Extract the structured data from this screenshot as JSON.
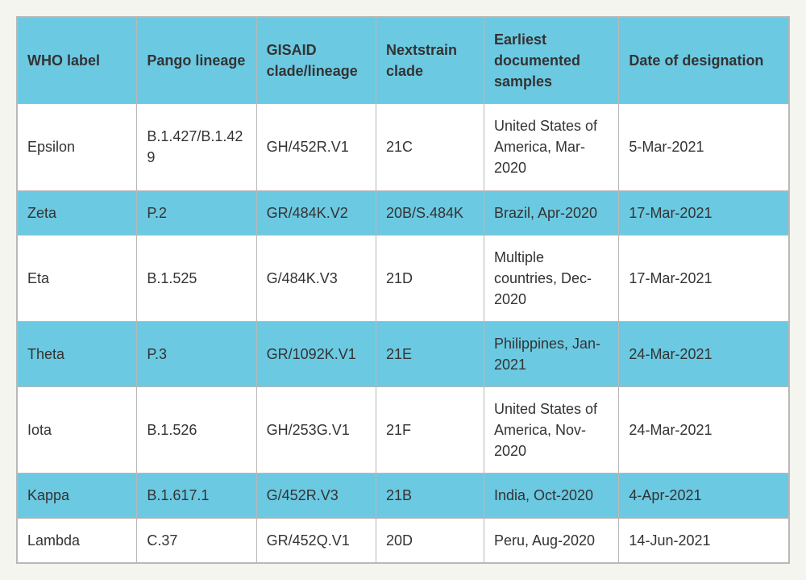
{
  "table": {
    "type": "table",
    "colors": {
      "header_bg": "#6cc9e2",
      "alt_row_bg": "#6cc9e2",
      "row_bg": "#ffffff",
      "border": "#b8b8b8",
      "text": "#333333",
      "page_bg": "#f5f5f0"
    },
    "typography": {
      "header_fontsize": 18,
      "cell_fontsize": 18,
      "header_weight": "bold",
      "cell_weight": "normal"
    },
    "columns": [
      {
        "key": "who_label",
        "label": "WHO label",
        "width_pct": 15.5
      },
      {
        "key": "pango_lineage",
        "label": "Pango lineage",
        "width_pct": 15.5
      },
      {
        "key": "gisaid_clade",
        "label": "GISAID clade/lineage",
        "width_pct": 15.5
      },
      {
        "key": "nextstrain_clade",
        "label": "Nextstrain clade",
        "width_pct": 14
      },
      {
        "key": "earliest_samples",
        "label": "Earliest documented samples",
        "width_pct": 17.5
      },
      {
        "key": "date_designation",
        "label": "Date of designation",
        "width_pct": 22
      }
    ],
    "rows": [
      {
        "who_label": "Epsilon",
        "pango_lineage": "B.1.427/B.1.429",
        "gisaid_clade": "GH/452R.V1",
        "nextstrain_clade": "21C",
        "earliest_samples": "United States of America, Mar-2020",
        "date_designation": "5-Mar-2021"
      },
      {
        "who_label": "Zeta",
        "pango_lineage": "P.2",
        "gisaid_clade": "GR/484K.V2",
        "nextstrain_clade": "20B/S.484K",
        "earliest_samples": "Brazil, Apr-2020",
        "date_designation": "17-Mar-2021"
      },
      {
        "who_label": "Eta",
        "pango_lineage": "B.1.525",
        "gisaid_clade": "G/484K.V3",
        "nextstrain_clade": "21D",
        "earliest_samples": "Multiple countries, Dec-2020",
        "date_designation": "17-Mar-2021"
      },
      {
        "who_label": "Theta",
        "pango_lineage": "P.3",
        "gisaid_clade": "GR/1092K.V1",
        "nextstrain_clade": "21E",
        "earliest_samples": "Philippines, Jan-2021",
        "date_designation": "24-Mar-2021"
      },
      {
        "who_label": "Iota",
        "pango_lineage": "B.1.526",
        "gisaid_clade": "GH/253G.V1",
        "nextstrain_clade": "21F",
        "earliest_samples": "United States of America, Nov-2020",
        "date_designation": "24-Mar-2021"
      },
      {
        "who_label": "Kappa",
        "pango_lineage": "B.1.617.1",
        "gisaid_clade": "G/452R.V3",
        "nextstrain_clade": "21B",
        "earliest_samples": "India, Oct-2020",
        "date_designation": "4-Apr-2021"
      },
      {
        "who_label": "Lambda",
        "pango_lineage": "C.37",
        "gisaid_clade": "GR/452Q.V1",
        "nextstrain_clade": "20D",
        "earliest_samples": "Peru, Aug-2020",
        "date_designation": "14-Jun-2021"
      }
    ]
  }
}
